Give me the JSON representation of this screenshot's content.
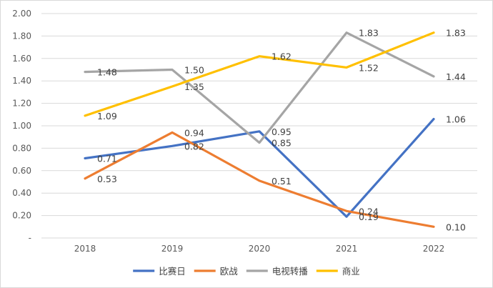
{
  "chart_data": {
    "type": "line",
    "title": "",
    "xlabel": "",
    "ylabel": "",
    "categories": [
      "2018",
      "2019",
      "2020",
      "2021",
      "2022"
    ],
    "ylim": [
      0,
      2.0
    ],
    "y_ticks": [
      "-",
      "0.20",
      "0.40",
      "0.60",
      "0.80",
      "1.00",
      "1.20",
      "1.40",
      "1.60",
      "1.80",
      "2.00"
    ],
    "grid": true,
    "legend_position": "bottom",
    "series": [
      {
        "name": "比赛日",
        "color": "#4472C4",
        "values": [
          0.71,
          0.82,
          0.95,
          0.19,
          1.06
        ],
        "labels": [
          "0.71",
          "0.82",
          "0.95",
          "0.19",
          "1.06"
        ]
      },
      {
        "name": "欧战",
        "color": "#ED7D31",
        "values": [
          0.53,
          0.94,
          0.51,
          0.24,
          0.1
        ],
        "labels": [
          "0.53",
          "0.94",
          "0.51",
          "0.24",
          "0.10"
        ]
      },
      {
        "name": "电视转播",
        "color": "#A5A5A5",
        "values": [
          1.48,
          1.5,
          0.85,
          1.83,
          1.44
        ],
        "labels": [
          "1.48",
          "1.50",
          "0.85",
          "1.83",
          "1.44"
        ]
      },
      {
        "name": "商业",
        "color": "#FFC000",
        "values": [
          1.09,
          1.35,
          1.62,
          1.52,
          1.83
        ],
        "labels": [
          "1.09",
          "1.35",
          "1.62",
          "1.52",
          "1.83"
        ]
      }
    ]
  }
}
